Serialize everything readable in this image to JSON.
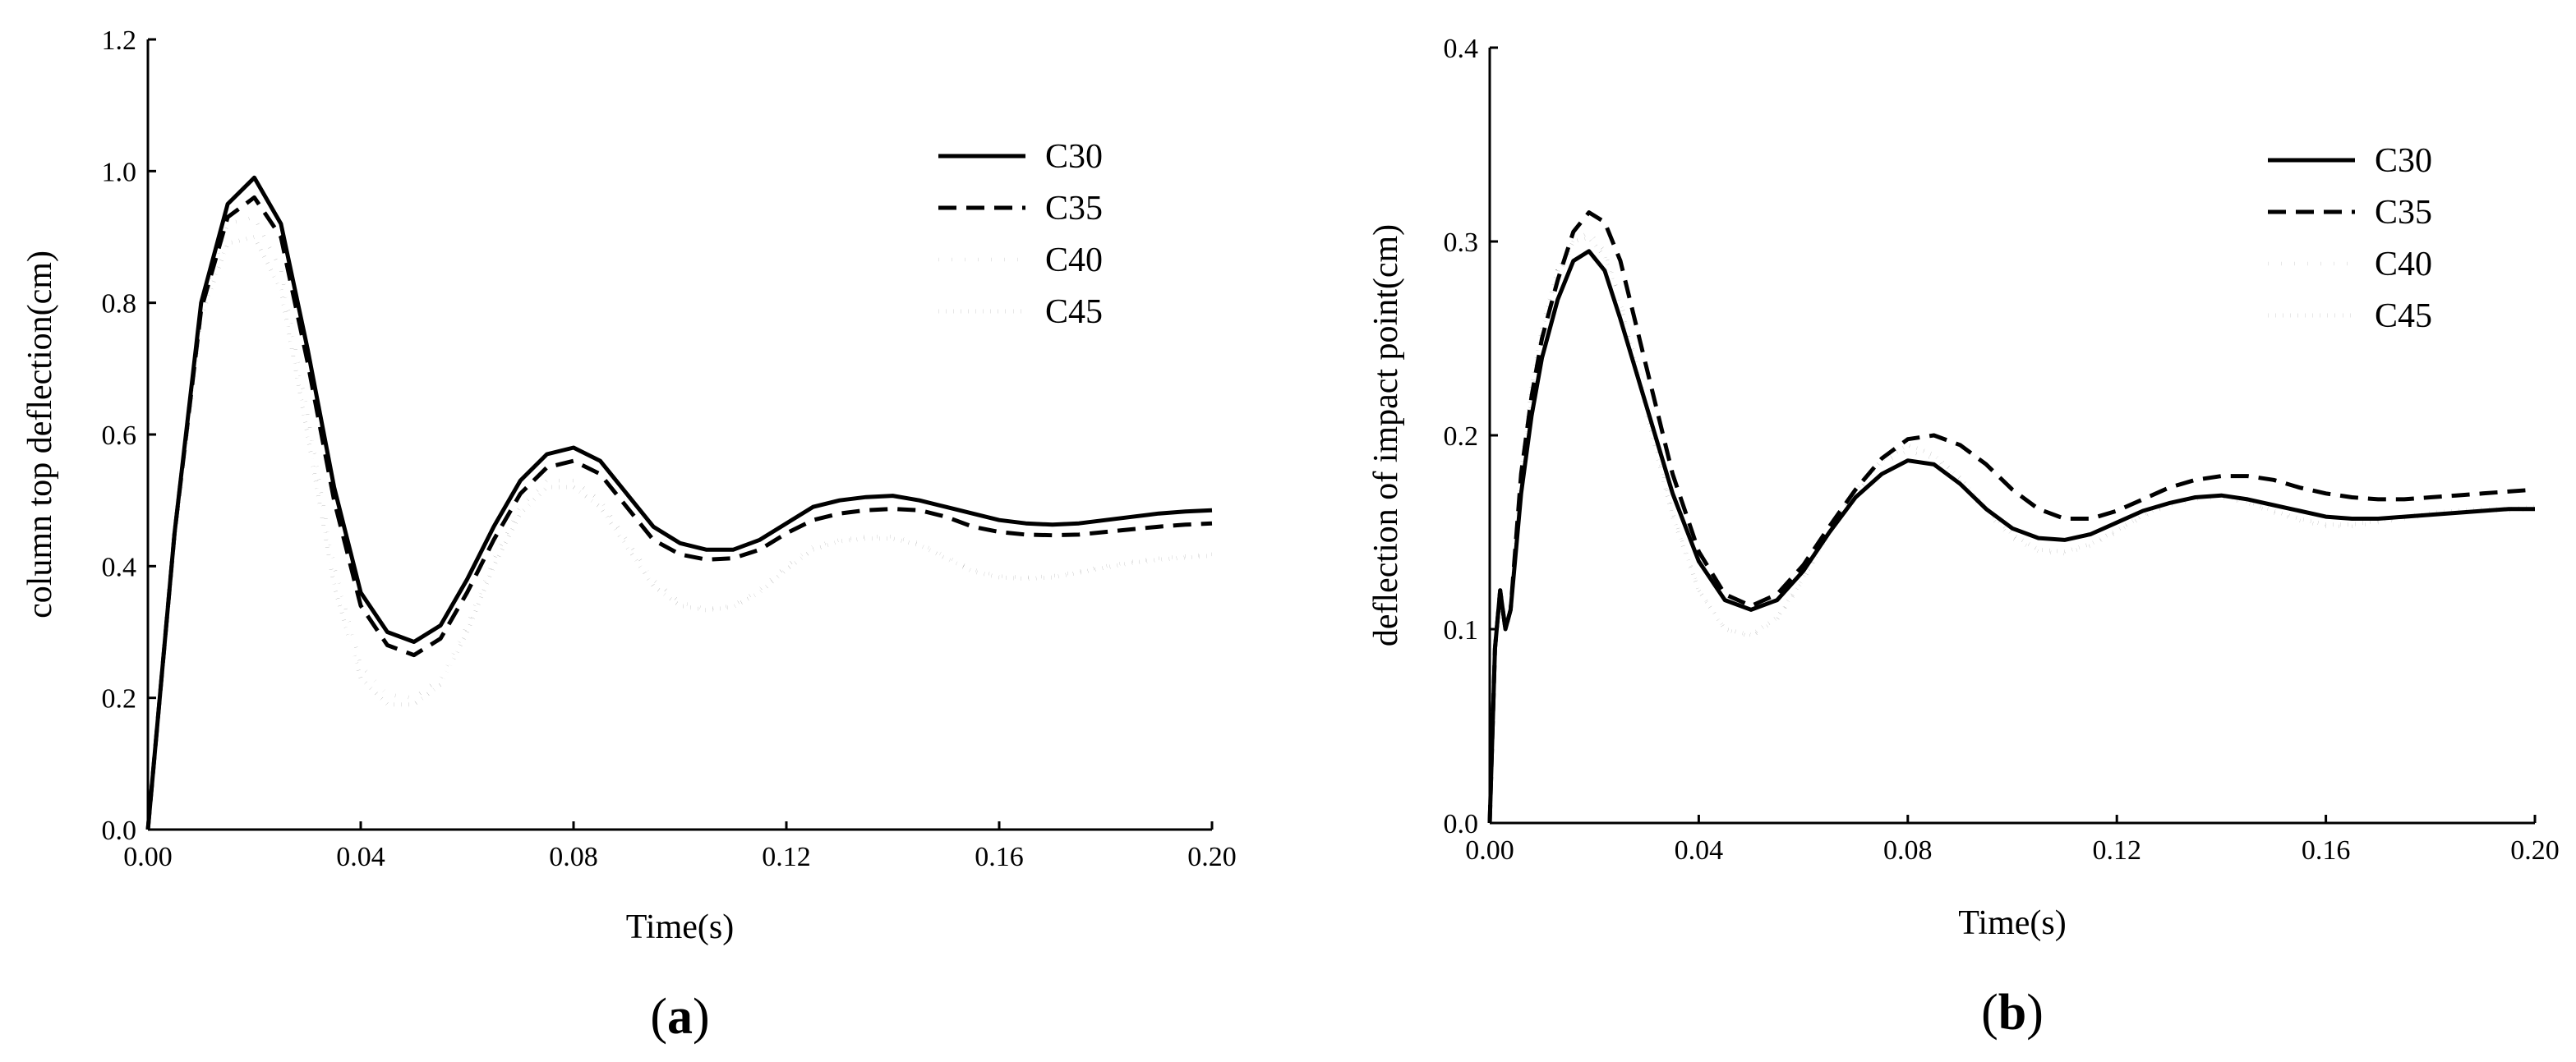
{
  "chart_data": [
    {
      "type": "line",
      "panel_label": "a",
      "title": "",
      "xlabel": "Time(s)",
      "ylabel": "column top deflection(cm)",
      "xlim": [
        0,
        0.2
      ],
      "ylim": [
        0,
        1.2
      ],
      "x_ticks": [
        "0.00",
        "0.04",
        "0.08",
        "0.12",
        "0.16",
        "0.20"
      ],
      "y_ticks": [
        "0.0",
        "0.2",
        "0.4",
        "0.6",
        "0.8",
        "1.0",
        "1.2"
      ],
      "legend_position": "top-right",
      "grid": false,
      "series": [
        {
          "name": "C30",
          "style": "solid",
          "x": [
            0,
            0.005,
            0.01,
            0.015,
            0.02,
            0.025,
            0.03,
            0.035,
            0.04,
            0.045,
            0.05,
            0.055,
            0.06,
            0.065,
            0.07,
            0.075,
            0.08,
            0.085,
            0.09,
            0.095,
            0.1,
            0.105,
            0.11,
            0.115,
            0.12,
            0.125,
            0.13,
            0.135,
            0.14,
            0.145,
            0.15,
            0.155,
            0.16,
            0.165,
            0.17,
            0.175,
            0.18,
            0.185,
            0.19,
            0.195,
            0.2
          ],
          "y": [
            0,
            0.45,
            0.8,
            0.95,
            0.99,
            0.92,
            0.73,
            0.52,
            0.36,
            0.3,
            0.285,
            0.31,
            0.38,
            0.46,
            0.53,
            0.57,
            0.58,
            0.56,
            0.51,
            0.46,
            0.435,
            0.425,
            0.425,
            0.44,
            0.465,
            0.49,
            0.5,
            0.505,
            0.507,
            0.5,
            0.49,
            0.48,
            0.47,
            0.465,
            0.463,
            0.465,
            0.47,
            0.475,
            0.48,
            0.483,
            0.485
          ]
        },
        {
          "name": "C35",
          "style": "dashed",
          "x": [
            0,
            0.005,
            0.01,
            0.015,
            0.02,
            0.025,
            0.03,
            0.035,
            0.04,
            0.045,
            0.05,
            0.055,
            0.06,
            0.065,
            0.07,
            0.075,
            0.08,
            0.085,
            0.09,
            0.095,
            0.1,
            0.105,
            0.11,
            0.115,
            0.12,
            0.125,
            0.13,
            0.135,
            0.14,
            0.145,
            0.15,
            0.155,
            0.16,
            0.165,
            0.17,
            0.175,
            0.18,
            0.185,
            0.19,
            0.195,
            0.2
          ],
          "y": [
            0,
            0.45,
            0.79,
            0.93,
            0.96,
            0.9,
            0.71,
            0.5,
            0.34,
            0.28,
            0.265,
            0.29,
            0.36,
            0.44,
            0.51,
            0.55,
            0.56,
            0.54,
            0.49,
            0.44,
            0.418,
            0.41,
            0.412,
            0.425,
            0.45,
            0.47,
            0.48,
            0.485,
            0.487,
            0.485,
            0.475,
            0.46,
            0.452,
            0.448,
            0.447,
            0.448,
            0.452,
            0.456,
            0.46,
            0.463,
            0.465
          ]
        },
        {
          "name": "C40",
          "style": "dotted-sparse",
          "x": [
            0,
            0.005,
            0.01,
            0.015,
            0.02,
            0.025,
            0.03,
            0.035,
            0.04,
            0.045,
            0.05,
            0.055,
            0.06,
            0.065,
            0.07,
            0.075,
            0.08,
            0.085,
            0.09,
            0.095,
            0.1,
            0.105,
            0.11,
            0.115,
            0.12,
            0.125,
            0.13,
            0.135,
            0.14,
            0.145,
            0.15,
            0.155,
            0.16,
            0.165,
            0.17,
            0.175,
            0.18,
            0.185,
            0.19,
            0.195,
            0.2
          ],
          "y": [
            0,
            0.46,
            0.8,
            0.92,
            0.93,
            0.85,
            0.63,
            0.4,
            0.25,
            0.205,
            0.2,
            0.23,
            0.31,
            0.41,
            0.49,
            0.53,
            0.53,
            0.5,
            0.44,
            0.38,
            0.345,
            0.335,
            0.34,
            0.365,
            0.4,
            0.43,
            0.44,
            0.445,
            0.445,
            0.435,
            0.415,
            0.395,
            0.385,
            0.383,
            0.385,
            0.392,
            0.4,
            0.407,
            0.412,
            0.415,
            0.418
          ]
        },
        {
          "name": "C45",
          "style": "dotted-dense",
          "x": [
            0,
            0.005,
            0.01,
            0.015,
            0.02,
            0.025,
            0.03,
            0.035,
            0.04,
            0.045,
            0.05,
            0.055,
            0.06,
            0.065,
            0.07,
            0.075,
            0.08,
            0.085,
            0.09,
            0.095,
            0.1,
            0.105,
            0.11,
            0.115,
            0.12,
            0.125,
            0.13,
            0.135,
            0.14,
            0.145,
            0.15,
            0.155,
            0.16,
            0.165,
            0.17,
            0.175,
            0.18,
            0.185,
            0.19,
            0.195,
            0.2
          ],
          "y": [
            0,
            0.44,
            0.78,
            0.89,
            0.9,
            0.82,
            0.6,
            0.37,
            0.23,
            0.19,
            0.19,
            0.22,
            0.3,
            0.4,
            0.48,
            0.52,
            0.52,
            0.49,
            0.43,
            0.37,
            0.34,
            0.333,
            0.338,
            0.36,
            0.395,
            0.425,
            0.438,
            0.442,
            0.442,
            0.432,
            0.412,
            0.392,
            0.383,
            0.381,
            0.383,
            0.39,
            0.398,
            0.405,
            0.41,
            0.413,
            0.416
          ]
        }
      ]
    },
    {
      "type": "line",
      "panel_label": "b",
      "title": "",
      "xlabel": "Time(s)",
      "ylabel": "deflection of impact point(cm)",
      "xlim": [
        0,
        0.2
      ],
      "ylim": [
        0,
        0.4
      ],
      "x_ticks": [
        "0.00",
        "0.04",
        "0.08",
        "0.12",
        "0.16",
        "0.20"
      ],
      "y_ticks": [
        "0.0",
        "0.1",
        "0.2",
        "0.3",
        "0.4"
      ],
      "legend_position": "top-right",
      "grid": false,
      "series": [
        {
          "name": "C30",
          "style": "solid",
          "x": [
            0,
            0.001,
            0.002,
            0.003,
            0.004,
            0.006,
            0.008,
            0.01,
            0.013,
            0.016,
            0.019,
            0.022,
            0.025,
            0.03,
            0.035,
            0.04,
            0.045,
            0.05,
            0.055,
            0.06,
            0.065,
            0.07,
            0.075,
            0.08,
            0.085,
            0.09,
            0.095,
            0.1,
            0.105,
            0.11,
            0.115,
            0.12,
            0.125,
            0.13,
            0.135,
            0.14,
            0.145,
            0.15,
            0.155,
            0.16,
            0.165,
            0.17,
            0.175,
            0.18,
            0.185,
            0.19,
            0.195,
            0.2
          ],
          "y": [
            0,
            0.09,
            0.12,
            0.1,
            0.11,
            0.17,
            0.21,
            0.24,
            0.27,
            0.29,
            0.295,
            0.285,
            0.26,
            0.215,
            0.17,
            0.135,
            0.115,
            0.11,
            0.115,
            0.13,
            0.15,
            0.168,
            0.18,
            0.187,
            0.185,
            0.175,
            0.162,
            0.152,
            0.147,
            0.146,
            0.149,
            0.155,
            0.161,
            0.165,
            0.168,
            0.169,
            0.167,
            0.164,
            0.161,
            0.158,
            0.157,
            0.157,
            0.158,
            0.159,
            0.16,
            0.161,
            0.162,
            0.162
          ]
        },
        {
          "name": "C35",
          "style": "dashed",
          "x": [
            0,
            0.001,
            0.002,
            0.003,
            0.004,
            0.006,
            0.008,
            0.01,
            0.013,
            0.016,
            0.019,
            0.022,
            0.025,
            0.03,
            0.035,
            0.04,
            0.045,
            0.05,
            0.055,
            0.06,
            0.065,
            0.07,
            0.075,
            0.08,
            0.085,
            0.09,
            0.095,
            0.1,
            0.105,
            0.11,
            0.115,
            0.12,
            0.125,
            0.13,
            0.135,
            0.14,
            0.145,
            0.15,
            0.155,
            0.16,
            0.165,
            0.17,
            0.175,
            0.18,
            0.185,
            0.19,
            0.195,
            0.2
          ],
          "y": [
            0,
            0.09,
            0.12,
            0.1,
            0.11,
            0.18,
            0.22,
            0.25,
            0.28,
            0.305,
            0.315,
            0.31,
            0.29,
            0.235,
            0.18,
            0.14,
            0.118,
            0.112,
            0.118,
            0.133,
            0.153,
            0.172,
            0.188,
            0.198,
            0.2,
            0.195,
            0.185,
            0.172,
            0.162,
            0.157,
            0.157,
            0.161,
            0.167,
            0.173,
            0.177,
            0.179,
            0.179,
            0.177,
            0.173,
            0.17,
            0.168,
            0.167,
            0.167,
            0.168,
            0.169,
            0.17,
            0.171,
            0.172
          ]
        },
        {
          "name": "C40",
          "style": "dotted-sparse",
          "x": [
            0,
            0.001,
            0.002,
            0.003,
            0.004,
            0.006,
            0.008,
            0.01,
            0.013,
            0.016,
            0.019,
            0.022,
            0.025,
            0.03,
            0.035,
            0.04,
            0.045,
            0.05,
            0.055,
            0.06,
            0.065,
            0.07,
            0.075,
            0.08,
            0.085,
            0.09,
            0.095,
            0.1,
            0.105,
            0.11,
            0.115,
            0.12,
            0.125,
            0.13,
            0.135,
            0.14,
            0.145,
            0.15,
            0.155,
            0.16,
            0.165,
            0.17,
            0.175,
            0.18,
            0.185,
            0.19,
            0.195,
            0.2
          ],
          "y": [
            0,
            0.09,
            0.115,
            0.1,
            0.11,
            0.17,
            0.22,
            0.25,
            0.28,
            0.3,
            0.305,
            0.295,
            0.27,
            0.215,
            0.16,
            0.12,
            0.1,
            0.096,
            0.105,
            0.125,
            0.15,
            0.17,
            0.185,
            0.192,
            0.188,
            0.176,
            0.16,
            0.147,
            0.14,
            0.139,
            0.143,
            0.15,
            0.158,
            0.164,
            0.167,
            0.168,
            0.165,
            0.16,
            0.156,
            0.153,
            0.153,
            0.155,
            0.157,
            0.159,
            0.16,
            0.161,
            0.161,
            0.162
          ]
        },
        {
          "name": "C45",
          "style": "dotted-dense",
          "x": [
            0,
            0.001,
            0.002,
            0.003,
            0.004,
            0.006,
            0.008,
            0.01,
            0.013,
            0.016,
            0.019,
            0.022,
            0.025,
            0.03,
            0.035,
            0.04,
            0.045,
            0.05,
            0.055,
            0.06,
            0.065,
            0.07,
            0.075,
            0.08,
            0.085,
            0.09,
            0.095,
            0.1,
            0.105,
            0.11,
            0.115,
            0.12,
            0.125,
            0.13,
            0.135,
            0.14,
            0.145,
            0.15,
            0.155,
            0.16,
            0.165,
            0.17,
            0.175,
            0.18,
            0.185,
            0.19,
            0.195,
            0.2
          ],
          "y": [
            0,
            0.09,
            0.12,
            0.1,
            0.11,
            0.18,
            0.225,
            0.255,
            0.285,
            0.3,
            0.302,
            0.292,
            0.268,
            0.212,
            0.158,
            0.12,
            0.1,
            0.097,
            0.106,
            0.126,
            0.15,
            0.172,
            0.187,
            0.195,
            0.19,
            0.178,
            0.162,
            0.149,
            0.141,
            0.14,
            0.144,
            0.151,
            0.159,
            0.165,
            0.168,
            0.169,
            0.166,
            0.161,
            0.157,
            0.154,
            0.154,
            0.156,
            0.158,
            0.16,
            0.161,
            0.162,
            0.162,
            0.163
          ]
        }
      ]
    }
  ]
}
